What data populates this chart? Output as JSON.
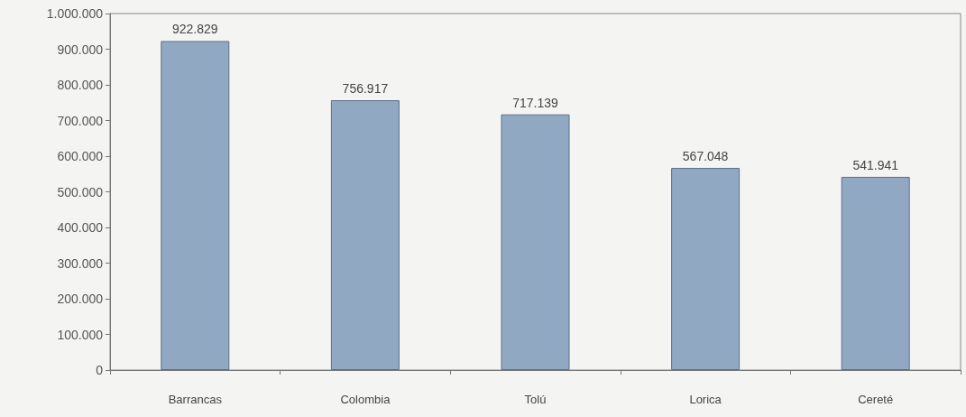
{
  "chart_data": {
    "type": "bar",
    "categories": [
      "Barrancas",
      "Colombia",
      "Tolú",
      "Lorica",
      "Cereté"
    ],
    "values": [
      922829,
      756917,
      717139,
      567048,
      541941
    ],
    "value_labels": [
      "922.829",
      "756.917",
      "717.139",
      "567.048",
      "541.941"
    ],
    "color": "#91a8c3",
    "ylim": [
      0,
      1000000
    ],
    "yticks": [
      {
        "value": 0,
        "label": "0"
      },
      {
        "value": 100000,
        "label": "100.000"
      },
      {
        "value": 200000,
        "label": "200.000"
      },
      {
        "value": 300000,
        "label": "300.000"
      },
      {
        "value": 400000,
        "label": "400.000"
      },
      {
        "value": 500000,
        "label": "500.000"
      },
      {
        "value": 600000,
        "label": "600.000"
      },
      {
        "value": 700000,
        "label": "700.000"
      },
      {
        "value": 800000,
        "label": "800.000"
      },
      {
        "value": 900000,
        "label": "900.000"
      },
      {
        "value": 1000000,
        "label": "1.000.000"
      }
    ],
    "grid": false
  }
}
